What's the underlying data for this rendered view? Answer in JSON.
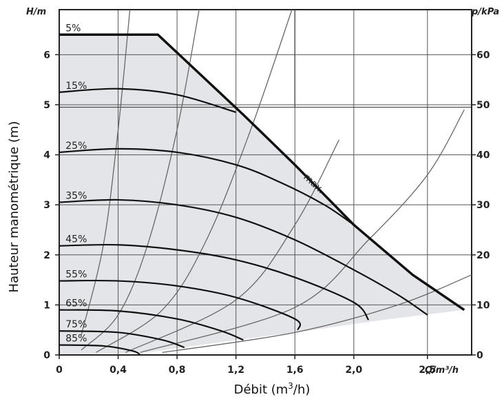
{
  "chart_data": {
    "type": "line",
    "ylabel_left": "Hauteur manométrique (m)",
    "xlabel_main": "Débit (m",
    "xlabel_sup": "3",
    "xlabel_end": "/h)",
    "xunit": "Q/m³/h",
    "yunit_left": "H/m",
    "yunit_right": "p/kPa",
    "xlim": [
      0,
      2.8
    ],
    "ylim": [
      0,
      6.9
    ],
    "x_ticks": [
      {
        "v": 0,
        "label": "0"
      },
      {
        "v": 0.4,
        "label": "0,4"
      },
      {
        "v": 0.8,
        "label": "0,8"
      },
      {
        "v": 1.2,
        "label": "1,2"
      },
      {
        "v": 1.6,
        "label": "1,6"
      },
      {
        "v": 2.0,
        "label": "2,0"
      },
      {
        "v": 2.5,
        "label": "2,5"
      }
    ],
    "y_ticks_left": [
      {
        "v": 0,
        "label": "0"
      },
      {
        "v": 1,
        "label": "1"
      },
      {
        "v": 2,
        "label": "2"
      },
      {
        "v": 3,
        "label": "3"
      },
      {
        "v": 4,
        "label": "4"
      },
      {
        "v": 5,
        "label": "5"
      },
      {
        "v": 6,
        "label": "6"
      }
    ],
    "y_ticks_right": [
      {
        "v": 0,
        "label": "0"
      },
      {
        "v": 1,
        "label": "10"
      },
      {
        "v": 2,
        "label": "20"
      },
      {
        "v": 3,
        "label": "30"
      },
      {
        "v": 4,
        "label": "40"
      },
      {
        "v": 5,
        "label": "50"
      },
      {
        "v": 6,
        "label": "60"
      }
    ],
    "max_curve": {
      "name": "max.",
      "points": [
        [
          0,
          6.4
        ],
        [
          0.67,
          6.4
        ],
        [
          1.25,
          4.8
        ],
        [
          1.6,
          3.8
        ],
        [
          2.0,
          2.6
        ],
        [
          2.4,
          1.6
        ],
        [
          2.75,
          0.9
        ]
      ]
    },
    "series": [
      {
        "name": "5%",
        "points": [
          [
            0,
            6.4
          ],
          [
            0.67,
            6.4
          ]
        ]
      },
      {
        "name": "15%",
        "points": [
          [
            0,
            5.25
          ],
          [
            0.4,
            5.32
          ],
          [
            0.8,
            5.2
          ],
          [
            1.2,
            4.85
          ]
        ]
      },
      {
        "name": "25%",
        "points": [
          [
            0,
            4.05
          ],
          [
            0.4,
            4.12
          ],
          [
            0.8,
            4.05
          ],
          [
            1.2,
            3.8
          ],
          [
            1.5,
            3.45
          ],
          [
            1.8,
            3.0
          ],
          [
            2.0,
            2.6
          ]
        ]
      },
      {
        "name": "35%",
        "points": [
          [
            0,
            3.05
          ],
          [
            0.4,
            3.1
          ],
          [
            0.8,
            3.0
          ],
          [
            1.2,
            2.75
          ],
          [
            1.6,
            2.3
          ],
          [
            2.0,
            1.7
          ],
          [
            2.3,
            1.2
          ],
          [
            2.5,
            0.8
          ]
        ]
      },
      {
        "name": "45%",
        "points": [
          [
            0,
            2.18
          ],
          [
            0.4,
            2.2
          ],
          [
            0.8,
            2.1
          ],
          [
            1.2,
            1.9
          ],
          [
            1.6,
            1.55
          ],
          [
            2.0,
            1.05
          ],
          [
            2.1,
            0.7
          ]
        ]
      },
      {
        "name": "55%",
        "points": [
          [
            0,
            1.48
          ],
          [
            0.4,
            1.48
          ],
          [
            0.8,
            1.38
          ],
          [
            1.2,
            1.15
          ],
          [
            1.6,
            0.72
          ],
          [
            1.62,
            0.5
          ]
        ]
      },
      {
        "name": "65%",
        "points": [
          [
            0,
            0.9
          ],
          [
            0.4,
            0.88
          ],
          [
            0.8,
            0.72
          ],
          [
            1.1,
            0.48
          ],
          [
            1.25,
            0.3
          ]
        ]
      },
      {
        "name": "75%",
        "points": [
          [
            0,
            0.48
          ],
          [
            0.4,
            0.45
          ],
          [
            0.7,
            0.3
          ],
          [
            0.85,
            0.15
          ]
        ]
      },
      {
        "name": "85%",
        "points": [
          [
            0,
            0.2
          ],
          [
            0.3,
            0.18
          ],
          [
            0.5,
            0.08
          ],
          [
            0.55,
            0.0
          ]
        ]
      }
    ],
    "system_curves": [
      {
        "points": [
          [
            0.15,
            0.4
          ],
          [
            0.3,
            2.2
          ],
          [
            0.4,
            4.5
          ],
          [
            0.48,
            6.9
          ]
        ]
      },
      {
        "points": [
          [
            0.15,
            0.1
          ],
          [
            0.4,
            0.8
          ],
          [
            0.6,
            2.2
          ],
          [
            0.8,
            4.5
          ],
          [
            0.95,
            6.9
          ]
        ]
      },
      {
        "points": [
          [
            0.25,
            0.05
          ],
          [
            0.7,
            0.9
          ],
          [
            1.0,
            2.3
          ],
          [
            1.3,
            4.5
          ],
          [
            1.58,
            6.9
          ]
        ]
      },
      {
        "points": [
          [
            0.45,
            0.05
          ],
          [
            1.2,
            1.1
          ],
          [
            1.6,
            2.6
          ],
          [
            1.9,
            4.3
          ]
        ]
      },
      {
        "points": [
          [
            0.55,
            0.05
          ],
          [
            1.6,
            0.95
          ],
          [
            2.1,
            2.3
          ],
          [
            2.5,
            3.6
          ],
          [
            2.75,
            4.9
          ]
        ]
      },
      {
        "points": [
          [
            0.7,
            0.05
          ],
          [
            1.6,
            0.45
          ],
          [
            2.3,
            1.0
          ],
          [
            2.8,
            1.6
          ]
        ]
      }
    ],
    "operating_area_bottom": [
      [
        0,
        0.0
      ],
      [
        0.6,
        0.05
      ],
      [
        1.2,
        0.3
      ],
      [
        1.6,
        0.45
      ],
      [
        2.2,
        0.7
      ],
      [
        2.75,
        0.9
      ]
    ]
  }
}
